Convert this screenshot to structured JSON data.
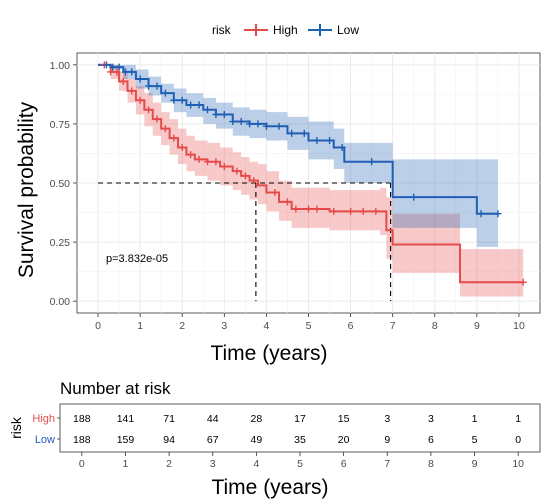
{
  "legend": {
    "title": "risk",
    "items": [
      {
        "label": "High",
        "color": "#e64b4b"
      },
      {
        "label": "Low",
        "color": "#1f5fb4"
      }
    ]
  },
  "annotation": "p=3.832e-05",
  "chart_data": [
    {
      "type": "line",
      "chart_kind": "kaplan-meier",
      "xlabel": "Time (years)",
      "ylabel": "Survival probability",
      "xlim": [
        -0.5,
        10.5
      ],
      "ylim": [
        -0.05,
        1.05
      ],
      "xticks": [
        0,
        1,
        2,
        3,
        4,
        5,
        6,
        7,
        8,
        9,
        10
      ],
      "yticks": [
        "0.00",
        "0.25",
        "0.50",
        "0.75",
        "1.00"
      ],
      "grid": true,
      "legend_position": "top",
      "median_lines": [
        {
          "series": "High",
          "x": 3.75,
          "y": 0.5
        },
        {
          "series": "Low",
          "x": 6.95,
          "y": 0.5
        }
      ],
      "series": [
        {
          "name": "High",
          "color": "#e64b4b",
          "x": [
            0,
            0.3,
            0.5,
            0.7,
            0.9,
            1.1,
            1.3,
            1.5,
            1.7,
            1.9,
            2.1,
            2.3,
            2.6,
            2.9,
            3.2,
            3.4,
            3.6,
            3.8,
            4.0,
            4.3,
            4.6,
            5.0,
            5.5,
            6.0,
            6.7,
            6.85,
            7.0,
            8.0,
            8.6,
            10.1
          ],
          "y": [
            1.0,
            0.97,
            0.93,
            0.89,
            0.85,
            0.81,
            0.77,
            0.73,
            0.69,
            0.65,
            0.62,
            0.6,
            0.59,
            0.57,
            0.55,
            0.53,
            0.51,
            0.49,
            0.46,
            0.42,
            0.39,
            0.39,
            0.38,
            0.38,
            0.38,
            0.3,
            0.24,
            0.24,
            0.08,
            0.08
          ],
          "upper": [
            1.0,
            1.0,
            0.97,
            0.94,
            0.91,
            0.88,
            0.84,
            0.8,
            0.77,
            0.73,
            0.7,
            0.68,
            0.67,
            0.65,
            0.63,
            0.61,
            0.59,
            0.58,
            0.55,
            0.51,
            0.48,
            0.48,
            0.47,
            0.47,
            0.48,
            0.44,
            0.37,
            0.37,
            0.22,
            0.22
          ],
          "lower": [
            1.0,
            0.94,
            0.89,
            0.84,
            0.79,
            0.74,
            0.7,
            0.66,
            0.62,
            0.58,
            0.55,
            0.53,
            0.51,
            0.49,
            0.47,
            0.45,
            0.43,
            0.41,
            0.38,
            0.34,
            0.31,
            0.31,
            0.3,
            0.3,
            0.28,
            0.18,
            0.12,
            0.12,
            0.02,
            0.02
          ],
          "censor_x": [
            0.15,
            0.3,
            0.45,
            0.6,
            0.8,
            1.0,
            1.2,
            1.4,
            1.6,
            1.8,
            2.0,
            2.2,
            2.4,
            2.6,
            2.8,
            3.0,
            3.3,
            3.5,
            3.7,
            4.2,
            4.5,
            4.7,
            5.0,
            5.2,
            5.6,
            6.0,
            6.3,
            6.6,
            10.1
          ]
        },
        {
          "name": "Low",
          "color": "#1f5fb4",
          "x": [
            0,
            0.3,
            0.6,
            0.9,
            1.2,
            1.5,
            1.8,
            2.1,
            2.5,
            2.8,
            3.2,
            3.6,
            4.0,
            4.5,
            5.0,
            5.6,
            5.85,
            6.9,
            7.0,
            9.0,
            9.5
          ],
          "y": [
            1.0,
            0.99,
            0.97,
            0.94,
            0.91,
            0.88,
            0.85,
            0.83,
            0.81,
            0.79,
            0.76,
            0.75,
            0.74,
            0.71,
            0.68,
            0.65,
            0.59,
            0.59,
            0.44,
            0.37,
            0.37
          ],
          "upper": [
            1.0,
            1.0,
            1.0,
            0.98,
            0.95,
            0.92,
            0.9,
            0.88,
            0.86,
            0.84,
            0.82,
            0.81,
            0.8,
            0.78,
            0.76,
            0.73,
            0.67,
            0.67,
            0.6,
            0.6,
            0.6
          ],
          "lower": [
            1.0,
            0.98,
            0.94,
            0.9,
            0.87,
            0.84,
            0.8,
            0.78,
            0.75,
            0.73,
            0.7,
            0.69,
            0.68,
            0.64,
            0.6,
            0.56,
            0.5,
            0.5,
            0.31,
            0.23,
            0.23
          ],
          "censor_x": [
            0.2,
            0.35,
            0.5,
            0.65,
            0.8,
            1.0,
            1.2,
            1.4,
            1.6,
            1.8,
            2.0,
            2.2,
            2.4,
            2.6,
            2.8,
            3.0,
            3.2,
            3.4,
            3.6,
            3.8,
            4.0,
            4.3,
            4.6,
            4.9,
            5.2,
            5.5,
            5.8,
            6.5,
            7.5,
            9.1,
            9.5
          ]
        }
      ]
    },
    {
      "type": "table",
      "title": "Number at risk",
      "xlabel": "Time (years)",
      "ylabel": "risk",
      "columns": [
        0,
        1,
        2,
        3,
        4,
        5,
        6,
        7,
        8,
        9,
        10
      ],
      "rows": [
        {
          "name": "High",
          "color": "#e64b4b",
          "values": [
            188,
            141,
            71,
            44,
            28,
            17,
            15,
            3,
            3,
            1,
            1
          ]
        },
        {
          "name": "Low",
          "color": "#1f5fb4",
          "values": [
            188,
            159,
            94,
            67,
            49,
            35,
            20,
            9,
            6,
            5,
            0
          ]
        }
      ]
    }
  ]
}
